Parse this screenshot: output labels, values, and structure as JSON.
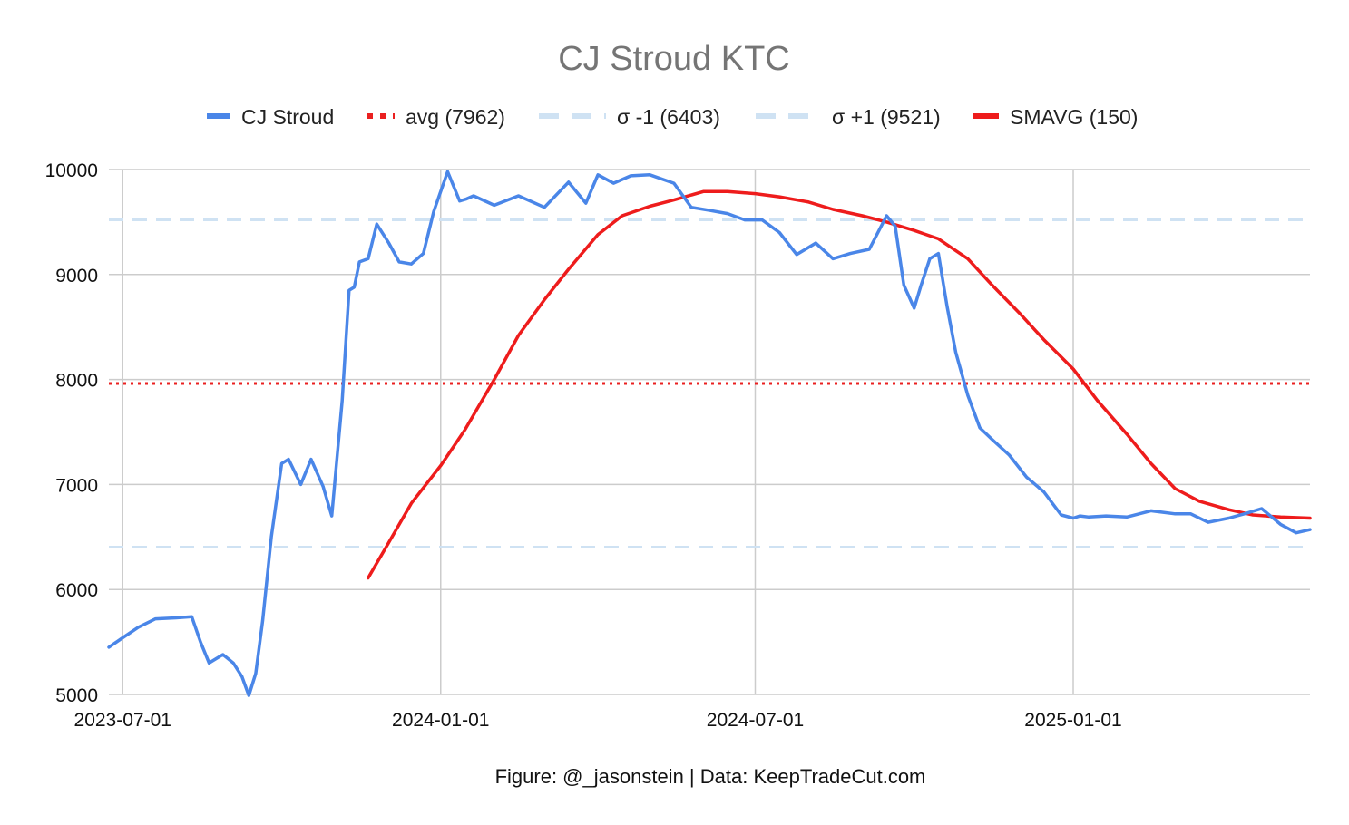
{
  "chart_data": {
    "type": "line",
    "title": "CJ Stroud KTC",
    "caption": "Figure: @_jasonstein | Data: KeepTradeCut.com",
    "xlabel": "",
    "ylabel": "",
    "xlim": [
      "2023-06-23",
      "2025-05-18"
    ],
    "ylim": [
      5000,
      10000
    ],
    "x_ticks": [
      "2023-07-01",
      "2024-01-01",
      "2024-07-01",
      "2025-01-01"
    ],
    "y_ticks": [
      5000,
      6000,
      7000,
      8000,
      9000,
      10000
    ],
    "grid": true,
    "legend_position": "top",
    "colors": {
      "cj_stroud": "#4a86e8",
      "avg": "#ea2020",
      "sigma": "#cfe2f3",
      "smavg": "#ee1c1c",
      "grid": "#cccccc",
      "title": "#757575"
    },
    "series": [
      {
        "name": "CJ Stroud",
        "style": "solid",
        "x": [
          "2023-06-23",
          "2023-07-01",
          "2023-07-10",
          "2023-07-20",
          "2023-08-01",
          "2023-08-10",
          "2023-08-15",
          "2023-08-20",
          "2023-08-28",
          "2023-09-03",
          "2023-09-08",
          "2023-09-12",
          "2023-09-16",
          "2023-09-20",
          "2023-09-25",
          "2023-10-01",
          "2023-10-05",
          "2023-10-12",
          "2023-10-18",
          "2023-10-25",
          "2023-10-30",
          "2023-11-05",
          "2023-11-09",
          "2023-11-12",
          "2023-11-15",
          "2023-11-20",
          "2023-11-25",
          "2023-12-02",
          "2023-12-08",
          "2023-12-15",
          "2023-12-22",
          "2023-12-28",
          "2024-01-05",
          "2024-01-12",
          "2024-01-16",
          "2024-01-20",
          "2024-02-01",
          "2024-02-15",
          "2024-03-01",
          "2024-03-15",
          "2024-03-25",
          "2024-04-01",
          "2024-04-10",
          "2024-04-20",
          "2024-05-01",
          "2024-05-15",
          "2024-05-25",
          "2024-06-05",
          "2024-06-15",
          "2024-06-25",
          "2024-07-05",
          "2024-07-15",
          "2024-07-25",
          "2024-08-05",
          "2024-08-15",
          "2024-08-25",
          "2024-09-05",
          "2024-09-15",
          "2024-09-20",
          "2024-09-25",
          "2024-10-01",
          "2024-10-05",
          "2024-10-10",
          "2024-10-15",
          "2024-10-20",
          "2024-10-25",
          "2024-11-01",
          "2024-11-08",
          "2024-11-15",
          "2024-11-25",
          "2024-12-05",
          "2024-12-15",
          "2024-12-25",
          "2025-01-01",
          "2025-01-05",
          "2025-01-10",
          "2025-01-20",
          "2025-02-01",
          "2025-02-15",
          "2025-03-01",
          "2025-03-10",
          "2025-03-20",
          "2025-04-01",
          "2025-04-10",
          "2025-04-20",
          "2025-05-01",
          "2025-05-10",
          "2025-05-18"
        ],
        "values": [
          5450,
          5540,
          5640,
          5720,
          5730,
          5740,
          5500,
          5300,
          5380,
          5300,
          5170,
          4990,
          5200,
          5700,
          6500,
          7200,
          7240,
          7000,
          7240,
          6980,
          6700,
          7800,
          8850,
          8880,
          9120,
          9150,
          9480,
          9300,
          9120,
          9100,
          9200,
          9600,
          9980,
          9700,
          9720,
          9750,
          9660,
          9750,
          9640,
          9880,
          9680,
          9950,
          9870,
          9940,
          9950,
          9870,
          9640,
          9610,
          9580,
          9520,
          9520,
          9400,
          9190,
          9300,
          9150,
          9200,
          9240,
          9560,
          9460,
          8900,
          8680,
          8900,
          9150,
          9200,
          8700,
          8260,
          7850,
          7540,
          7430,
          7280,
          7070,
          6930,
          6710,
          6680,
          6700,
          6690,
          6700,
          6690,
          6750,
          6720,
          6720,
          6640,
          6680,
          6720,
          6770,
          6620,
          6540,
          6570
        ]
      },
      {
        "name": "avg (7962)",
        "style": "dotted",
        "x": [
          "2023-06-23",
          "2025-05-18"
        ],
        "values": [
          7962,
          7962
        ]
      },
      {
        "name": "σ -1 (6403)",
        "style": "dashed",
        "x": [
          "2023-06-23",
          "2025-05-18"
        ],
        "values": [
          6403,
          6403
        ]
      },
      {
        "name": "σ +1 (9521)",
        "style": "dashed",
        "x": [
          "2023-06-23",
          "2025-05-18"
        ],
        "values": [
          9521,
          9521
        ]
      },
      {
        "name": "SMAVG (150)",
        "style": "solid",
        "x": [
          "2023-11-20",
          "2023-12-01",
          "2023-12-15",
          "2024-01-01",
          "2024-01-15",
          "2024-02-01",
          "2024-02-15",
          "2024-03-01",
          "2024-03-15",
          "2024-04-01",
          "2024-04-15",
          "2024-05-01",
          "2024-05-15",
          "2024-06-01",
          "2024-06-15",
          "2024-07-01",
          "2024-07-15",
          "2024-08-01",
          "2024-08-15",
          "2024-09-01",
          "2024-09-15",
          "2024-10-01",
          "2024-10-15",
          "2024-11-01",
          "2024-11-15",
          "2024-12-01",
          "2024-12-15",
          "2025-01-01",
          "2025-01-15",
          "2025-02-01",
          "2025-02-15",
          "2025-03-01",
          "2025-03-15",
          "2025-04-01",
          "2025-04-15",
          "2025-05-01",
          "2025-05-18"
        ],
        "values": [
          6110,
          6420,
          6820,
          7180,
          7520,
          8000,
          8420,
          8760,
          9050,
          9380,
          9560,
          9650,
          9710,
          9790,
          9790,
          9770,
          9740,
          9690,
          9620,
          9560,
          9500,
          9420,
          9340,
          9150,
          8900,
          8630,
          8380,
          8100,
          7800,
          7480,
          7200,
          6960,
          6840,
          6760,
          6710,
          6690,
          6680
        ]
      }
    ]
  }
}
